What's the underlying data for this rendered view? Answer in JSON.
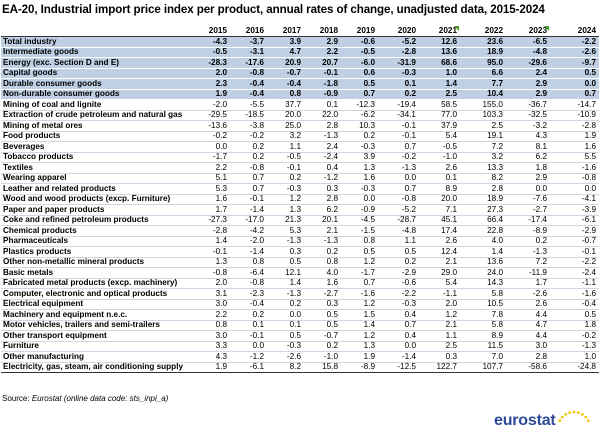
{
  "title": "EA-20, Industrial import price index per product, annual rates of change, unadjusted data, 2015-2024",
  "source_label": "Source:",
  "source_text": "Eurostat (online data code: sts_inpi_a)",
  "logo_text": "eurostat",
  "colors": {
    "aggregate_row_bg": "#bfd0e5",
    "flag": "#4aa02c",
    "logo_text": "#2e4a96",
    "logo_star": "#f1c40f"
  },
  "table": {
    "columns": [
      "2015",
      "2016",
      "2017",
      "2018",
      "2019",
      "2020",
      "2021",
      "2022",
      "2023",
      "2024"
    ],
    "flagged_columns": [
      "2021",
      "2023"
    ],
    "rows": [
      {
        "label": "Total industry",
        "values": [
          "-4.3",
          "-3.7",
          "3.9",
          "2.9",
          "-0.6",
          "-5.2",
          "12.6",
          "23.6",
          "-6.5",
          "-2.2"
        ]
      },
      {
        "label": "Intermediate goods",
        "values": [
          "-0.5",
          "-3.1",
          "4.7",
          "2.2",
          "-0.5",
          "-2.8",
          "13.6",
          "18.9",
          "-4.8",
          "-2.6"
        ]
      },
      {
        "label": "Energy (exc. Section D and E)",
        "values": [
          "-28.3",
          "-17.6",
          "20.9",
          "20.7",
          "-6.0",
          "-31.9",
          "68.6",
          "95.0",
          "-29.6",
          "-9.7"
        ]
      },
      {
        "label": "Capital goods",
        "values": [
          "2.0",
          "-0.8",
          "-0.7",
          "-0.1",
          "0.6",
          "-0.3",
          "1.0",
          "6.6",
          "2.4",
          "0.5"
        ]
      },
      {
        "label": "Durable consumer goods",
        "values": [
          "2.3",
          "-0.4",
          "-0.4",
          "-1.8",
          "0.5",
          "0.1",
          "1.4",
          "7.7",
          "2.9",
          "0.0"
        ]
      },
      {
        "label": "Non-durable consumer goods",
        "values": [
          "1.9",
          "-0.4",
          "0.8",
          "-0.9",
          "0.7",
          "0.2",
          "2.5",
          "10.4",
          "2.9",
          "0.7"
        ]
      },
      {
        "label": "Mining of coal and lignite",
        "values": [
          "-2.0",
          "-5.5",
          "37.7",
          "0.1",
          "-12.3",
          "-19.4",
          "58.5",
          "155.0",
          "-36.7",
          "-14.7"
        ]
      },
      {
        "label": "Extraction of crude petroleum and natural gas",
        "values": [
          "-29.5",
          "-18.5",
          "20.0",
          "22.0",
          "-6.2",
          "-34.1",
          "77.0",
          "103.3",
          "-32.5",
          "-10.9"
        ]
      },
      {
        "label": "Mining of metal ores",
        "values": [
          "-13.6",
          "-3.8",
          "25.0",
          "2.8",
          "10.3",
          "-0.1",
          "37.9",
          "2.5",
          "-3.2",
          "-2.8"
        ]
      },
      {
        "label": "Food products",
        "values": [
          "-0.2",
          "-0.2",
          "3.2",
          "-1.3",
          "0.2",
          "-0.1",
          "5.4",
          "19.1",
          "4.3",
          "1.9"
        ]
      },
      {
        "label": "Beverages",
        "values": [
          "0.0",
          "0.2",
          "1.1",
          "2.4",
          "-0.3",
          "0.7",
          "-0.5",
          "7.2",
          "8.1",
          "1.6"
        ]
      },
      {
        "label": "Tobacco products",
        "values": [
          "-1.7",
          "0.2",
          "-0.5",
          "-2.4",
          "3.9",
          "-0.2",
          "-1.0",
          "3.2",
          "6.2",
          "5.5"
        ]
      },
      {
        "label": "Textiles",
        "values": [
          "2.2",
          "-0.8",
          "-0.1",
          "0.4",
          "1.3",
          "-1.3",
          "2.6",
          "13.3",
          "1.8",
          "-1.6"
        ]
      },
      {
        "label": "Wearing apparel",
        "values": [
          "5.1",
          "0.7",
          "0.2",
          "-1.2",
          "1.6",
          "0.0",
          "0.1",
          "8.2",
          "2.9",
          "-0.8"
        ]
      },
      {
        "label": "Leather and related products",
        "values": [
          "5.3",
          "0.7",
          "-0.3",
          "0.3",
          "-0.3",
          "0.7",
          "8.9",
          "2.8",
          "0.0",
          "0.0"
        ]
      },
      {
        "label": "Wood and wood products (excp. Furniture)",
        "values": [
          "1.6",
          "-0.1",
          "1.2",
          "2.8",
          "0.0",
          "-0.8",
          "20.0",
          "18.9",
          "-7.6",
          "-4.1"
        ]
      },
      {
        "label": "Paper and paper products",
        "values": [
          "1.7",
          "-1.4",
          "1.3",
          "6.2",
          "-0.9",
          "-5.2",
          "7.1",
          "27.3",
          "-2.7",
          "-3.9"
        ]
      },
      {
        "label": "Coke and refined petroleum products",
        "values": [
          "-27.3",
          "-17.0",
          "21.3",
          "20.1",
          "-4.5",
          "-28.7",
          "45.1",
          "66.4",
          "-17.4",
          "-6.1"
        ]
      },
      {
        "label": "Chemical products",
        "values": [
          "-2.8",
          "-4.2",
          "5.3",
          "2.1",
          "-1.5",
          "-4.8",
          "17.4",
          "22.8",
          "-8.9",
          "-2.9"
        ]
      },
      {
        "label": "Pharmaceuticals",
        "values": [
          "1.4",
          "-2.0",
          "-1.3",
          "-1.3",
          "0.8",
          "1.1",
          "2.6",
          "4.0",
          "0.2",
          "-0.7"
        ]
      },
      {
        "label": "Plastics products",
        "values": [
          "-0.1",
          "-1.4",
          "0.3",
          "0.2",
          "0.5",
          "0.5",
          "12.4",
          "1.4",
          "-1.3",
          "-0.1"
        ]
      },
      {
        "label": "Other non-metallic mineral products",
        "values": [
          "1.3",
          "0.8",
          "0.5",
          "0.8",
          "1.2",
          "0.2",
          "2.1",
          "13.6",
          "7.2",
          "-2.2"
        ]
      },
      {
        "label": "Basic metals",
        "values": [
          "-0.8",
          "-6.4",
          "12.1",
          "4.0",
          "-1.7",
          "-2.9",
          "29.0",
          "24.0",
          "-11.9",
          "-2.4"
        ]
      },
      {
        "label": "Fabricated metal products (excp. machinery)",
        "values": [
          "2.0",
          "-0.8",
          "1.4",
          "1.6",
          "0.7",
          "-0.6",
          "5.4",
          "14.3",
          "1.7",
          "-1.1"
        ]
      },
      {
        "label": "Computer, electronic and optical products",
        "values": [
          "3.1",
          "-2.3",
          "-1.3",
          "-2.7",
          "-1.6",
          "-2.2",
          "-1.1",
          "5.8",
          "-2.6",
          "-1.6"
        ]
      },
      {
        "label": "Electrical equipment",
        "values": [
          "3.0",
          "-0.4",
          "0.2",
          "0.3",
          "1.2",
          "-0.3",
          "2.0",
          "10.5",
          "2.6",
          "-0.4"
        ]
      },
      {
        "label": "Machinery and equipment n.e.c.",
        "values": [
          "2.2",
          "0.2",
          "0.0",
          "0.5",
          "1.5",
          "0.4",
          "1.2",
          "7.8",
          "4.4",
          "0.5"
        ]
      },
      {
        "label": "Motor vehicles, trailers and semi-trailers",
        "values": [
          "0.8",
          "0.1",
          "0.1",
          "0.5",
          "1.4",
          "0.7",
          "2.1",
          "5.8",
          "4.7",
          "1.8"
        ]
      },
      {
        "label": "Other transport equipment",
        "values": [
          "3.0",
          "-0.1",
          "0.5",
          "-0.7",
          "1.2",
          "0.4",
          "1.1",
          "8.9",
          "4.4",
          "-0.2"
        ]
      },
      {
        "label": "Furniture",
        "values": [
          "3.3",
          "0.0",
          "-0.3",
          "0.2",
          "1.3",
          "0.0",
          "2.5",
          "11.5",
          "3.0",
          "-1.3"
        ]
      },
      {
        "label": "Other manufacturing",
        "values": [
          "4.3",
          "-1.2",
          "-2.6",
          "-1.0",
          "1.9",
          "-1.4",
          "0.3",
          "7.0",
          "2.8",
          "1.0"
        ]
      },
      {
        "label": "Electricity, gas, steam, air conditioning supply",
        "values": [
          "1.9",
          "-6.1",
          "8.2",
          "15.8",
          "-8.9",
          "-12.5",
          "122.7",
          "107.7",
          "-58.6",
          "-24.8"
        ]
      }
    ]
  }
}
